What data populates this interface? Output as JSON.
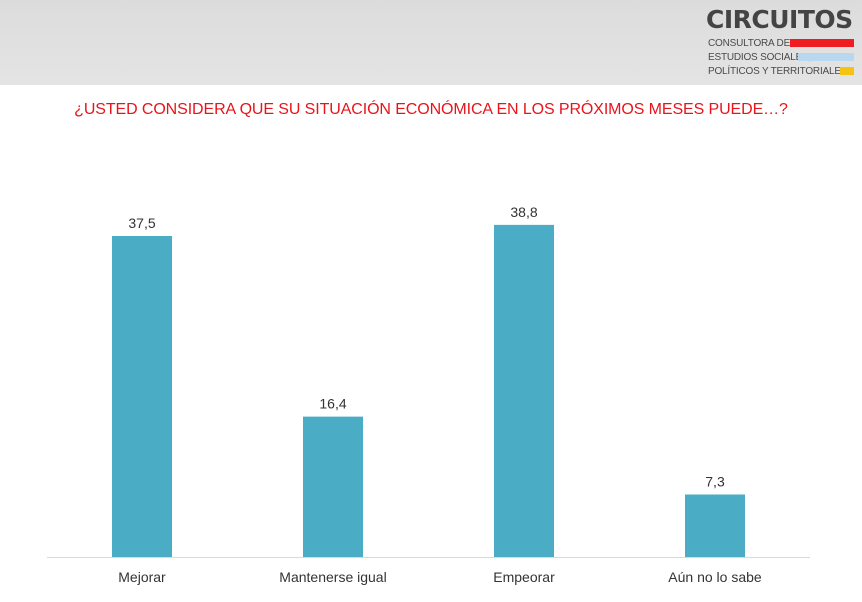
{
  "logo": {
    "title": "CIRCUITOS",
    "line1": "CONSULTORA DE",
    "line2": "ESTUDIOS SOCIALES,",
    "line3": "POLÍTICOS Y TERRITORIALES",
    "stripe_colors": [
      "#ef1c22",
      "#b9d7ee",
      "#f4c412"
    ]
  },
  "chart_data": {
    "type": "bar",
    "title": "¿USTED CONSIDERA QUE SU SITUACIÓN ECONÓMICA EN LOS PRÓXIMOS MESES PUEDE…?",
    "categories": [
      "Mejorar",
      "Mantenerse igual",
      "Empeorar",
      "Aún no lo sabe"
    ],
    "values": [
      37.5,
      16.4,
      38.8,
      7.3
    ],
    "value_labels": [
      "37,5",
      "16,4",
      "38,8",
      "7,3"
    ],
    "xlabel": "",
    "ylabel": "",
    "ylim": [
      0,
      45
    ],
    "bar_color": "#4bacc6",
    "title_color": "#e8141b",
    "grid": false,
    "legend": "none"
  }
}
